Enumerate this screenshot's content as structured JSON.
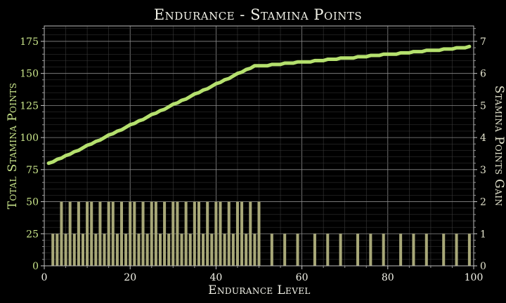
{
  "colors": {
    "background": "#000000",
    "line": "#b5e06e",
    "bars": "#a8a878",
    "grid_major": "#8a8a8a",
    "grid_minor": "#3a3a3a",
    "left_axis_text": "#c9e58a",
    "right_axis_text": "#e2e2cc",
    "x_axis_text": "#f2f2e8"
  },
  "chart_data": {
    "type": "bar+line",
    "title": "Endurance - Stamina Points",
    "xlabel": "Endurance Level",
    "ylabel_left": "Total Stamina Points",
    "ylabel_right": "Stamina Points Gain",
    "xlim": [
      0,
      100
    ],
    "ylim_left": [
      0,
      187
    ],
    "ylim_right": [
      0,
      7.48
    ],
    "x_ticks": [
      "0",
      "20",
      "40",
      "60",
      "80",
      "100"
    ],
    "y_ticks_left": [
      "0",
      "25",
      "50",
      "75",
      "100",
      "125",
      "150",
      "175"
    ],
    "y_ticks_right": [
      "0",
      "1",
      "2",
      "3",
      "4",
      "5",
      "6",
      "7"
    ],
    "grid": true,
    "levels": [
      1,
      2,
      3,
      4,
      5,
      6,
      7,
      8,
      9,
      10,
      11,
      12,
      13,
      14,
      15,
      16,
      17,
      18,
      19,
      20,
      21,
      22,
      23,
      24,
      25,
      26,
      27,
      28,
      29,
      30,
      31,
      32,
      33,
      34,
      35,
      36,
      37,
      38,
      39,
      40,
      41,
      42,
      43,
      44,
      45,
      46,
      47,
      48,
      49,
      50,
      51,
      52,
      53,
      54,
      55,
      56,
      57,
      58,
      59,
      60,
      61,
      62,
      63,
      64,
      65,
      66,
      67,
      68,
      69,
      70,
      71,
      72,
      73,
      74,
      75,
      76,
      77,
      78,
      79,
      80,
      81,
      82,
      83,
      84,
      85,
      86,
      87,
      88,
      89,
      90,
      91,
      92,
      93,
      94,
      95,
      96,
      97,
      98,
      99
    ],
    "series": [
      {
        "name": "Total Stamina Points",
        "axis": "left",
        "kind": "line",
        "values": [
          80,
          81,
          83,
          84,
          86,
          87,
          89,
          90,
          92,
          94,
          95,
          97,
          98,
          100,
          102,
          103,
          105,
          106,
          108,
          110,
          111,
          113,
          114,
          116,
          118,
          119,
          121,
          122,
          124,
          126,
          127,
          129,
          130,
          132,
          134,
          135,
          137,
          138,
          140,
          142,
          143,
          145,
          146,
          148,
          150,
          151,
          153,
          154,
          156,
          156,
          156,
          156,
          157,
          157,
          157,
          158,
          158,
          158,
          159,
          159,
          159,
          159,
          160,
          160,
          160,
          161,
          161,
          161,
          162,
          162,
          162,
          162,
          163,
          163,
          163,
          164,
          164,
          164,
          165,
          165,
          165,
          165,
          166,
          166,
          166,
          167,
          167,
          167,
          168,
          168,
          168,
          168,
          169,
          169,
          169,
          170,
          170,
          170,
          171
        ]
      },
      {
        "name": "Stamina Points Gain",
        "axis": "right",
        "kind": "bar",
        "values": [
          0,
          1,
          1,
          2,
          1,
          2,
          1,
          2,
          1,
          2,
          2,
          1,
          2,
          1,
          2,
          2,
          1,
          2,
          1,
          2,
          2,
          1,
          2,
          1,
          2,
          2,
          1,
          2,
          1,
          2,
          2,
          1,
          2,
          1,
          2,
          2,
          1,
          2,
          1,
          2,
          2,
          1,
          2,
          1,
          2,
          2,
          1,
          2,
          1,
          2,
          0,
          0,
          1,
          0,
          0,
          1,
          0,
          0,
          1,
          0,
          0,
          0,
          1,
          0,
          0,
          1,
          0,
          0,
          1,
          0,
          0,
          0,
          1,
          0,
          0,
          1,
          0,
          0,
          1,
          0,
          0,
          0,
          1,
          0,
          0,
          1,
          0,
          0,
          1,
          0,
          0,
          0,
          1,
          0,
          0,
          1,
          0,
          0,
          1
        ]
      }
    ]
  }
}
